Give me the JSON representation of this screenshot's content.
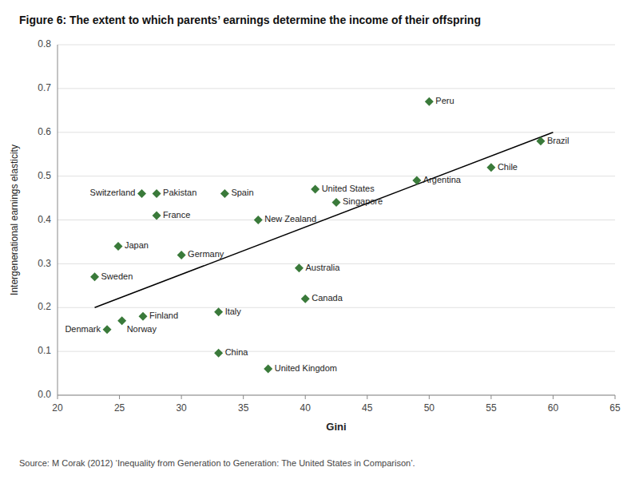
{
  "chart_data": {
    "type": "scatter",
    "title": "Figure 6: The extent to which parents’ earnings determine the income of their offspring",
    "xlabel": "Gini",
    "ylabel": "Intergenerational earnings elasticity",
    "source": "Source: M Corak (2012) ‘Inequality from Generation to Generation: The United States in Comparison’.",
    "xlim": [
      20,
      65
    ],
    "ylim": [
      0,
      0.8
    ],
    "xticks": [
      20,
      25,
      30,
      35,
      40,
      45,
      50,
      55,
      60,
      65
    ],
    "yticks": [
      {
        "value": 0,
        "label": "0.0"
      },
      0.1,
      0.2,
      0.3,
      0.4,
      0.5,
      0.6,
      0.7,
      0.8
    ],
    "grid": true,
    "marker": "diamond",
    "color": "#3a7a3a",
    "labels": [
      "Sweden",
      "Denmark",
      "Norway",
      "Finland",
      "Japan",
      "Switzerland",
      "France",
      "Pakistan",
      "Germany",
      "Italy",
      "China",
      "Spain",
      "New Zealand",
      "United Kingdom",
      "Australia",
      "Canada",
      "United States",
      "Singapore",
      "Argentina",
      "Peru",
      "Chile",
      "Brazil"
    ],
    "x": [
      23.0,
      24.0,
      25.2,
      26.9,
      24.9,
      26.8,
      28.0,
      28.0,
      30.0,
      33.0,
      33.0,
      33.5,
      36.2,
      37.0,
      39.5,
      40.0,
      40.8,
      42.5,
      49.0,
      50.0,
      55.0,
      59.0
    ],
    "values": [
      0.27,
      0.15,
      0.17,
      0.18,
      0.34,
      0.46,
      0.41,
      0.46,
      0.32,
      0.19,
      0.096,
      0.46,
      0.4,
      0.06,
      0.29,
      0.22,
      0.47,
      0.44,
      0.49,
      0.67,
      0.52,
      0.58
    ],
    "trendline": {
      "type": "line",
      "color": "#000000",
      "x": [
        23,
        60
      ],
      "values": [
        0.2,
        0.6
      ]
    }
  }
}
